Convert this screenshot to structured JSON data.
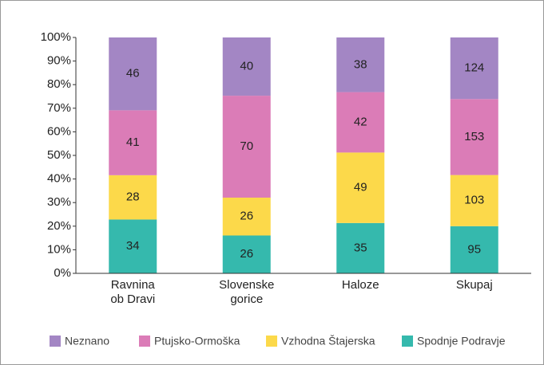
{
  "chart_data": {
    "type": "bar",
    "stack": "percent",
    "categories": [
      "Ravnina ob Dravi",
      "Slovenske gorice",
      "Haloze",
      "Skupaj"
    ],
    "series": [
      {
        "name": "Neznano",
        "color": "#a386c4",
        "values": [
          46,
          40,
          38,
          124
        ]
      },
      {
        "name": "Ptujsko-Ormoška",
        "color": "#db7cb7",
        "values": [
          41,
          70,
          42,
          153
        ]
      },
      {
        "name": "Vzhodna Štajerska",
        "color": "#fcd94a",
        "values": [
          28,
          26,
          49,
          103
        ]
      },
      {
        "name": "Spodnje Podravje",
        "color": "#35b9ad",
        "values": [
          34,
          26,
          35,
          95
        ]
      }
    ],
    "ylim": [
      0,
      100
    ],
    "yticks": [
      {
        "value": 0,
        "label": "0%"
      },
      {
        "value": 10,
        "label": "10%"
      },
      {
        "value": 20,
        "label": "20%"
      },
      {
        "value": 30,
        "label": "30%"
      },
      {
        "value": 40,
        "label": "40%"
      },
      {
        "value": 50,
        "label": "50%"
      },
      {
        "value": 60,
        "label": "60%"
      },
      {
        "value": 70,
        "label": "70%"
      },
      {
        "value": 80,
        "label": "80%"
      },
      {
        "value": 90,
        "label": "90%"
      },
      {
        "value": 100,
        "label": "100%"
      }
    ],
    "legend": "bottom"
  }
}
